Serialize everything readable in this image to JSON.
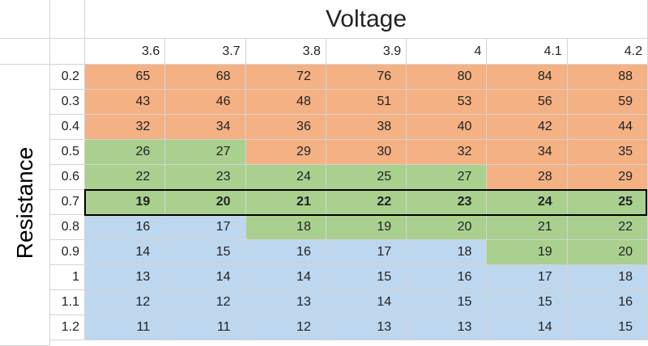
{
  "table": {
    "column_header": "Voltage",
    "row_header": "Resistance",
    "voltages": [
      3.6,
      3.7,
      3.8,
      3.9,
      4,
      4.1,
      4.2
    ],
    "resistances": [
      0.2,
      0.3,
      0.4,
      0.5,
      0.6,
      0.7,
      0.8,
      0.9,
      1,
      1.1,
      1.2
    ],
    "rows": [
      [
        65,
        68,
        72,
        76,
        80,
        84,
        88
      ],
      [
        43,
        46,
        48,
        51,
        53,
        56,
        59
      ],
      [
        32,
        34,
        36,
        38,
        40,
        42,
        44
      ],
      [
        26,
        27,
        29,
        30,
        32,
        34,
        35
      ],
      [
        22,
        23,
        24,
        25,
        27,
        28,
        29
      ],
      [
        19,
        20,
        21,
        22,
        23,
        24,
        25
      ],
      [
        16,
        17,
        18,
        19,
        20,
        21,
        22
      ],
      [
        14,
        15,
        16,
        17,
        18,
        19,
        20
      ],
      [
        13,
        14,
        14,
        15,
        16,
        17,
        18
      ],
      [
        12,
        12,
        13,
        14,
        15,
        15,
        16
      ],
      [
        11,
        11,
        12,
        13,
        13,
        14,
        15
      ]
    ]
  }
}
